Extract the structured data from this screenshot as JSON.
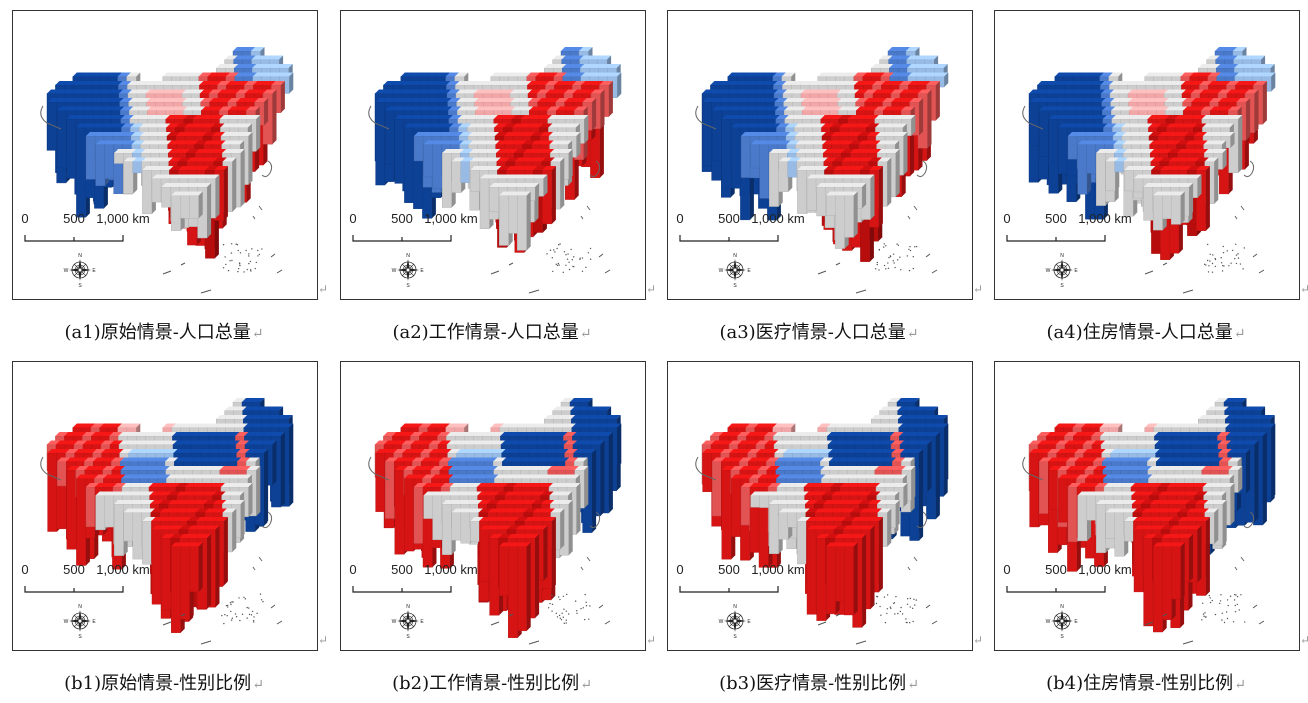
{
  "scale_bar": {
    "label_0": "0",
    "label_500": "500",
    "label_1000": "1,000 km"
  },
  "compass": {
    "n": "N",
    "s": "S",
    "e": "E",
    "w": "W"
  },
  "return_mark": "↵",
  "colors": {
    "dark_blue": "#0d4196",
    "mid_blue": "#4a79c9",
    "light_blue": "#98bbe6",
    "gray": "#cdcdcd",
    "light_red": "#f1a7a7",
    "mid_red": "#e25353",
    "red": "#d61414",
    "dark_red": "#b80d0d"
  },
  "panels": [
    {
      "id": "a1",
      "caption": "(a1)原始情景-人口总量",
      "pattern": "population"
    },
    {
      "id": "a2",
      "caption": "(a2)工作情景-人口总量",
      "pattern": "population"
    },
    {
      "id": "a3",
      "caption": "(a3)医疗情景-人口总量",
      "pattern": "population"
    },
    {
      "id": "a4",
      "caption": "(a4)住房情景-人口总量",
      "pattern": "population"
    },
    {
      "id": "b1",
      "caption": "(b1)原始情景-性别比例",
      "pattern": "sexratio"
    },
    {
      "id": "b2",
      "caption": "(b2)工作情景-性别比例",
      "pattern": "sexratio"
    },
    {
      "id": "b3",
      "caption": "(b3)医疗情景-性别比例",
      "pattern": "sexratio"
    },
    {
      "id": "b4",
      "caption": "(b4)住房情景-性别比例",
      "pattern": "sexratio"
    }
  ]
}
